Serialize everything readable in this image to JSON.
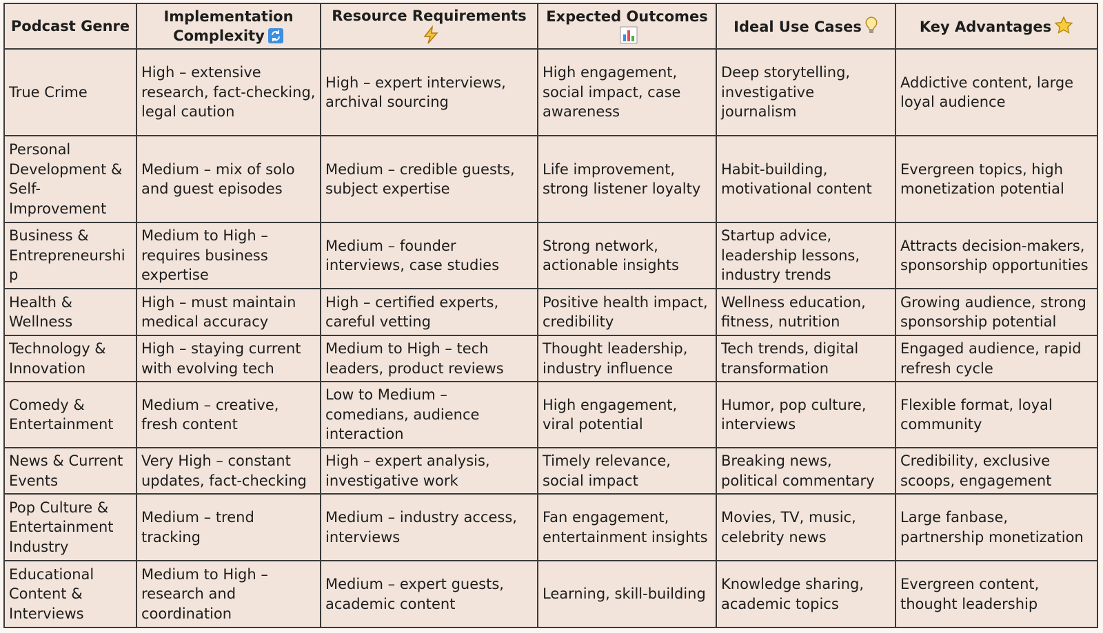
{
  "table": {
    "header": [
      "Podcast Genre",
      "Implementation Complexity",
      "Resource Requirements",
      "Expected Outcomes",
      "Ideal Use Cases",
      "Key Advantages"
    ],
    "rows": [
      [
        "True Crime",
        "High – extensive research, fact-checking, legal caution",
        "High – expert interviews, archival sourcing",
        "High engagement, social impact, case awareness",
        "Deep storytelling, investigative journalism",
        "Addictive content, large loyal audience"
      ],
      [
        "Personal Development & Self-Improvement",
        "Medium – mix of solo and guest episodes",
        "Medium – credible guests, subject expertise",
        "Life improvement, strong listener loyalty",
        "Habit-building, motivational content",
        "Evergreen topics, high monetization potential"
      ],
      [
        "Business & Entrepreneurship",
        "Medium to High – requires business expertise",
        "Medium – founder interviews, case studies",
        "Strong network, actionable insights",
        "Startup advice, leadership lessons, industry trends",
        "Attracts decision-makers, sponsorship opportunities"
      ],
      [
        "Health & Wellness",
        "High – must maintain medical accuracy",
        "High – certified experts, careful vetting",
        "Positive health impact, credibility",
        "Wellness education, fitness, nutrition",
        "Growing audience, strong sponsorship potential"
      ],
      [
        "Technology & Innovation",
        "High – staying current with evolving tech",
        "Medium to High – tech leaders, product reviews",
        "Thought leadership, industry influence",
        "Tech trends, digital transformation",
        "Engaged audience, rapid refresh cycle"
      ],
      [
        "Comedy & Entertainment",
        "Medium – creative, fresh content",
        "Low to Medium – comedians, audience interaction",
        "High engagement, viral potential",
        "Humor, pop culture, interviews",
        "Flexible format, loyal community"
      ],
      [
        "News & Current Events",
        "Very High – constant updates, fact-checking",
        "High – expert analysis, investigative work",
        "Timely relevance, social impact",
        "Breaking news, political commentary",
        "Credibility, exclusive scoops, engagement"
      ],
      [
        "Pop Culture & Entertainment Industry",
        "Medium – trend tracking",
        "Medium – industry access, interviews",
        "Fan engagement, entertainment insights",
        "Movies, TV, music, celebrity news",
        "Large fanbase, partnership monetization"
      ],
      [
        "Educational Content & Interviews",
        "Medium to High – research and coordination",
        "Medium – expert guests, academic content",
        "Learning, skill-building",
        "Knowledge sharing, academic topics",
        "Evergreen content, thought leadership"
      ]
    ]
  }
}
